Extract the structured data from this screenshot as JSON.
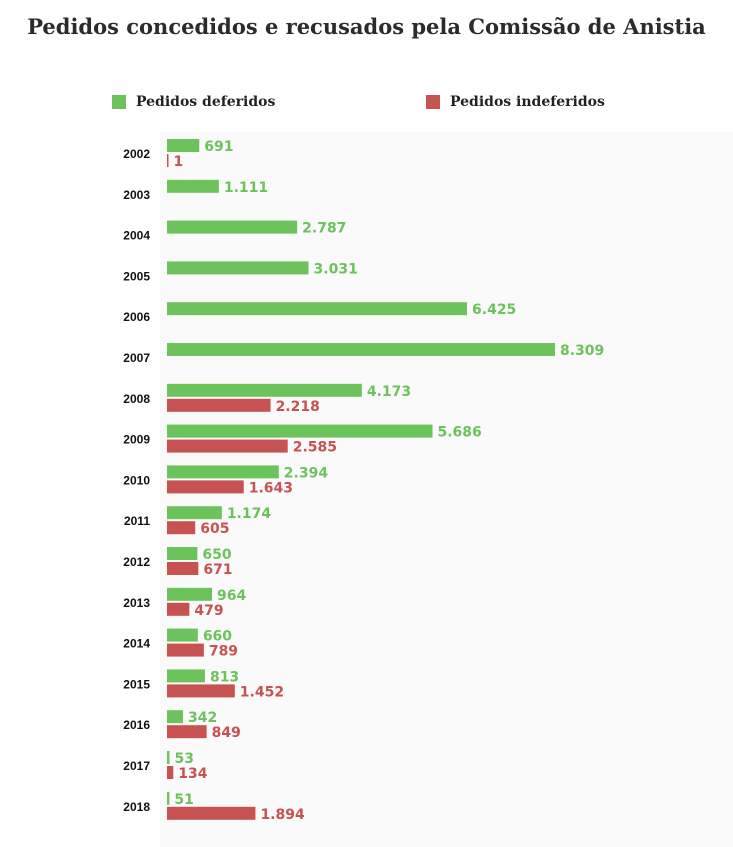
{
  "title": "Pedidos concedidos e recusados pela Comissão de Anistia",
  "colors": {
    "deferidos": "#6cc35c",
    "indeferidos": "#c65252"
  },
  "legend": {
    "deferidos": "Pedidos deferidos",
    "indeferidos": "Pedidos indeferidos"
  },
  "chart_data": {
    "type": "bar",
    "orientation": "horizontal",
    "title": "Pedidos concedidos e recusados pela Comissão de Anistia",
    "categories": [
      "2002",
      "2003",
      "2004",
      "2005",
      "2006",
      "2007",
      "2008",
      "2009",
      "2010",
      "2011",
      "2012",
      "2013",
      "2014",
      "2015",
      "2016",
      "2017",
      "2018"
    ],
    "series": [
      {
        "name": "Pedidos deferidos",
        "color": "#6cc35c",
        "values": [
          691,
          1111,
          2787,
          3031,
          6425,
          8309,
          4173,
          5686,
          2394,
          1174,
          650,
          964,
          660,
          813,
          342,
          53,
          51
        ],
        "labels": [
          "691",
          "1.111",
          "2.787",
          "3.031",
          "6.425",
          "8.309",
          "4.173",
          "5.686",
          "2.394",
          "1.174",
          "650",
          "964",
          "660",
          "813",
          "342",
          "53",
          "51"
        ]
      },
      {
        "name": "Pedidos indeferidos",
        "color": "#c65252",
        "values": [
          1,
          null,
          null,
          null,
          null,
          null,
          2218,
          2585,
          1643,
          605,
          671,
          479,
          789,
          1452,
          849,
          134,
          1894
        ],
        "labels": [
          "1",
          null,
          null,
          null,
          null,
          null,
          "2.218",
          "2.585",
          "1.643",
          "605",
          "671",
          "479",
          "789",
          "1.452",
          "849",
          "134",
          "1.894"
        ]
      }
    ],
    "xlim": [
      0,
      8309
    ],
    "legend_position": "top",
    "grid": false
  }
}
